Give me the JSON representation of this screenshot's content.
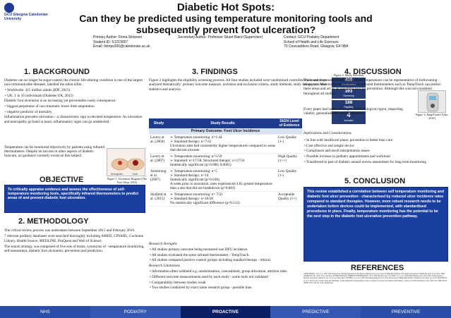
{
  "header": {
    "logo_text": "GCU Glasgow Caledonian University",
    "title_line1": "Diabetic Hot Spots:",
    "title_line2": "Can they be predicted using temperature monitoring tools and",
    "title_line3": "subsequently prevent foot ulceration?",
    "primary_author": "Primary Author: Fiona Simpson",
    "student_id": "Student ID: S1219007",
    "email": "Email: fsimps200@caledonian.ac.uk",
    "secondary_author": "Secondary Author: Professor Stuart Baird (Supervisor)",
    "contact": "Contact: GCU Podiatry Department",
    "school": "School of Health and Life Sciences",
    "address": "70 Cowcaddens Road, Glasgow, G4 0BA"
  },
  "background": {
    "heading": "1. BACKGROUND",
    "p1": "Diabetes can no longer be sugar-coated; the chronic life-altering condition is one of the largest non-communicable diseases, labelled the silent killer.",
    "b1": "•  Worldwide: 415 million adults (IDF, 2015)",
    "b2": "•  UK: 1 in 16 individuals (Diabetes UK, 2015)",
    "p2": "Diabetic foot ulceration is an increasing yet preventable costly consequence:",
    "b3": "•  biggest perpetrator of non-traumatic lower limb amputation",
    "b4": "•  negative predictor of mortality",
    "p3": "Inflammation precedes ulceration – a characteristic sign is elevated temperature. As ulceration and neuropathy go hand in hand, inflammatory signs can go undetected.",
    "p4": "Temperature can be monitored objectively by patients using infrared thermometers. Despite its success in other aspects of diabetic footcare, no guidance currently exists on this subject.",
    "figure_caption": "Figure 1: Ulceration Diagram (The Foot Shop, 2016)",
    "figure_label_left": "Hemoglobin",
    "figure_label_right": "Ulcer"
  },
  "objective": {
    "heading": "OBJECTIVE",
    "text": "To critically appraise evidence and assess the effectiveness of self-temperature monitoring tools, specifically infrared thermometers to predict areas of and prevent diabetic foot ulceration."
  },
  "methodology": {
    "heading": "2. METHODOLOGY",
    "p1": "The critical review process was undertaken between September 2015 and February 2016.",
    "p2": "7 relevant podiatry databases were searched thoroughly including AMED, CINAHL, Cochrane Library, Health Source, MEDLINE, ProQuest and Web of Science.",
    "p3": "The search strategy was composed of five sets of terms; synonyms of - temperature monitoring, self-assessment, diabetic foot ulceration, prevention and prediction."
  },
  "findings": {
    "heading": "3. FINDINGS",
    "intro": "Figure 2 highlights the eligibility screening process. All four studies included were randomised controlled trials and were analysed thematically: primary outcome measure, inclusion and exclusion criteria, study methods, study design, outcome statistics and analysis.",
    "flow_title": "Figure 2: Study Selection",
    "flow": [
      {
        "n": "439",
        "l": "Identification"
      },
      {
        "n": "393",
        "l": "Screening"
      },
      {
        "n": "188",
        "l": "Eligibility"
      },
      {
        "n": "4",
        "l": "Included"
      }
    ],
    "table": {
      "headers": [
        "Study",
        "Study Results",
        "SIGN Level of Evidence"
      ],
      "subheader": "Primary Outcome: Foot Ulcer Incidence",
      "rows": [
        {
          "study": "Lavery et al. (2004)",
          "results": "➢ Temperature monitoring: n=1/44\n➢ Standard therapy: n=7/41\nUlceration sites had consistently higher temperatures compared to areas that did not ulcerate.",
          "sign": "Low Quality (1-)"
        },
        {
          "study": "Lavery et al. (2007)",
          "results": "➢ Temperature monitoring: n=5/59\n➢ Standard: n=17/58; Structured therapy: n=17/56\nStatistically significant (p=0.008; 0.0061)",
          "sign": "High Quality (1++)"
        },
        {
          "study": "Armstrong et al. (2007)",
          "results": "➢ Temperature monitoring: n=5\n➢ Standard therapy: n=14\nStatistically significant (p=0.038).\nA week prior to ulceration, sites experienced 4.8x greater temperature than a site that did not breakdown (p=0.001)",
          "sign": "Low Quality (1-)"
        },
        {
          "study": "Skafjeld et al. (2015)",
          "results": "➢ Temperature monitoring: n= 7/21\n➢ Standard therapy: n=10/20\nNo statistically significant difference (p=0.512)",
          "sign": "Acceptable Quality (1+)"
        }
      ]
    },
    "strengths_heading": "Research Strengths",
    "strengths": [
      "•  All studies primary outcome being measured was DFU incidence.",
      "•  All studies evaluated the same infrared thermometer - TempTouch.",
      "•  All studies compared positive control groups including standard therapy - ethical."
    ],
    "limitations_heading": "Research Limitations",
    "limitations": [
      "•  Information often withheld e.g. randomisation, concealment, group allocation, attrition rates",
      "•  Different outcome measurements used by each study - some tools not validated",
      "•  Comparability between studies weak",
      "•  Two studies conducted by exact same research group - possible bias."
    ]
  },
  "discussion": {
    "heading": "4. DISCUSSION",
    "p1": "The research presented highlights raised temperatures can be representative of forthcoming ulceration. Monitoring temperature via infrared thermometers such as TempTouch can predict these areas and act as an insightful tool for prevention. Although this was not consistent throughout all studies.",
    "p2": "Every paper had issues relating to methodological rigour, impacting validity, generalisability and repeatability.",
    "implications_heading": "Implications and Considerations",
    "bullets": [
      "•  In line with healthcare plans: prevention is better than cure",
      "•  Cost effective and simple device",
      "•  Compliance and result interpretation issues",
      "•  Possible increase in podiatry appointments and workload",
      "•  Transferred to part of diabetic annual review assessment for long term monitoring"
    ],
    "figure_caption": "Figure 3: TempTouch (Xilas, 2016)"
  },
  "conclusion": {
    "heading": "5. CONCLUSION",
    "text": "This review established a correlation between self temperature monitoring and diabetic foot ulcer prevention - characterised by reduced ulcer incidence rates compared to standard therapies. However, more robust research needs to be undertaken before devices could be implemented, with standardised procedures in place. Finally, temperature monitoring has the potential to be the next step in the diabetic foot ulceration prevention pathway."
  },
  "references": {
    "heading": "REFERENCES",
    "text": "ARMSTRONG, D.G. et al. 2007 Skin Temperature Monitoring Reduces the Risk for Diabetic Foot Ulceration in High-Risk Patients. The American Journal of Medicine 120(12), pp.1042-1046. DIABETES UK, 2015. Facts and Stats. INTERNATIONAL DIABETES FEDERATION, 2015. IDF Diabetes Atlas. LAVERY, L.A. et al. 2004 Home Monitoring of Foot Skin Temperatures to Prevent Ulceration. Diabetes Care 27(11), pp.2642-2647. LAVERY, L.A. et al. 2007 Preventing Diabetic Foot Ulcer Recurrence in High-Risk Patients. Diabetes Care 30(1), pp.14-20. SKAFJELD, A. et al. 2015 A pilot study testing the feasibility of skin temperature monitoring to reduce recurrent foot ulcers in patients with diabetes. Journal of Clinical Nursing 24, pp.1563-1572. THE FOOT SHOP, 2016. XILAS, 2016. TempTouch."
  },
  "footer": [
    "NHS",
    "PODIATRY",
    "PROACTIVE",
    "PREDICTIVE",
    "PREVENTIVE"
  ],
  "colors": {
    "accent": "#1a3fa0",
    "table_header": "#1e3a8a",
    "footer_dark": "#0a1f66"
  }
}
